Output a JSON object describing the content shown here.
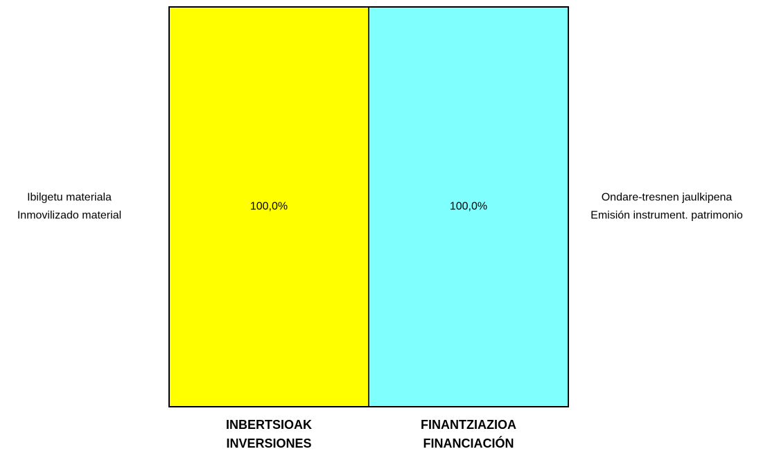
{
  "chart_data": {
    "type": "bar",
    "stacked": true,
    "categories": [
      [
        "INBERTSIOAK",
        "INVERSIONES"
      ],
      [
        "FINANTZIAZIOA",
        "FINANCIACIÓN"
      ]
    ],
    "series": [
      {
        "name": [
          "Ibilgetu materiala",
          "Inmovilizado material"
        ],
        "color": "#ffff00",
        "values": [
          100,
          null
        ],
        "value_labels": [
          "100,0%",
          null
        ]
      },
      {
        "name": [
          "Ondare-tresnen jaulkipena",
          "Emisión instrument. patrimonio"
        ],
        "color": "#80ffff",
        "values": [
          null,
          100
        ],
        "value_labels": [
          null,
          "100,0%"
        ]
      }
    ],
    "ylim": [
      0,
      100
    ]
  }
}
